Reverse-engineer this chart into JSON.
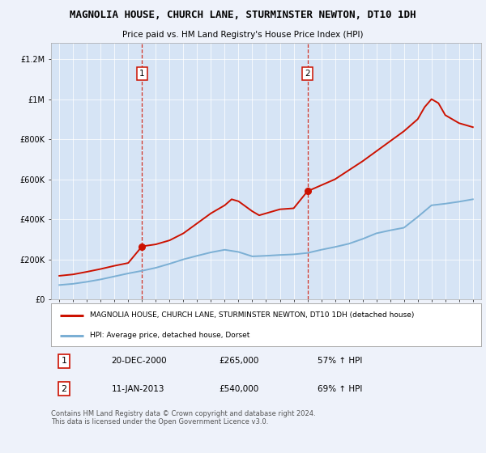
{
  "title": "MAGNOLIA HOUSE, CHURCH LANE, STURMINSTER NEWTON, DT10 1DH",
  "subtitle": "Price paid vs. HM Land Registry's House Price Index (HPI)",
  "background_color": "#eef2fa",
  "plot_bg_color": "#d6e4f5",
  "ylabel_ticks": [
    "£0",
    "£200K",
    "£400K",
    "£600K",
    "£800K",
    "£1M",
    "£1.2M"
  ],
  "ytick_values": [
    0,
    200000,
    400000,
    600000,
    800000,
    1000000,
    1200000
  ],
  "ylim": [
    0,
    1280000
  ],
  "hpi_color": "#7bafd4",
  "price_color": "#cc1100",
  "vline_color": "#cc1100",
  "purchase1_year": 2001.0,
  "purchase1_price": 265000,
  "purchase2_year": 2013.0,
  "purchase2_price": 540000,
  "legend_line1": "MAGNOLIA HOUSE, CHURCH LANE, STURMINSTER NEWTON, DT10 1DH (detached house)",
  "legend_line2": "HPI: Average price, detached house, Dorset",
  "table_entry1": [
    "1",
    "20-DEC-2000",
    "£265,000",
    "57% ↑ HPI"
  ],
  "table_entry2": [
    "2",
    "11-JAN-2013",
    "£540,000",
    "69% ↑ HPI"
  ],
  "footer": "Contains HM Land Registry data © Crown copyright and database right 2024.\nThis data is licensed under the Open Government Licence v3.0.",
  "hpi_years": [
    1995,
    1996,
    1997,
    1998,
    1999,
    2000,
    2001,
    2002,
    2003,
    2004,
    2005,
    2006,
    2007,
    2008,
    2009,
    2010,
    2011,
    2012,
    2013,
    2014,
    2015,
    2016,
    2017,
    2018,
    2019,
    2020,
    2021,
    2022,
    2023,
    2024,
    2025
  ],
  "hpi_data": [
    72000,
    78000,
    88000,
    100000,
    115000,
    130000,
    143000,
    158000,
    178000,
    200000,
    218000,
    235000,
    248000,
    237000,
    215000,
    218000,
    222000,
    225000,
    232000,
    248000,
    262000,
    278000,
    302000,
    330000,
    345000,
    358000,
    412000,
    470000,
    478000,
    488000,
    500000
  ],
  "price_data_x": [
    1995.0,
    1996.0,
    1997.0,
    1998.0,
    1999.0,
    2000.0,
    2001.0,
    2002.0,
    2003.0,
    2004.0,
    2005.0,
    2006.0,
    2007.0,
    2007.5,
    2008.0,
    2009.0,
    2009.5,
    2010.0,
    2011.0,
    2012.0,
    2013.0,
    2013.5,
    2014.0,
    2015.0,
    2016.0,
    2017.0,
    2018.0,
    2019.0,
    2020.0,
    2021.0,
    2021.5,
    2022.0,
    2022.5,
    2023.0,
    2023.5,
    2024.0,
    2025.0
  ],
  "price_data_y": [
    118000,
    125000,
    138000,
    152000,
    168000,
    182000,
    265000,
    275000,
    295000,
    330000,
    380000,
    430000,
    470000,
    500000,
    490000,
    440000,
    420000,
    430000,
    450000,
    455000,
    540000,
    555000,
    570000,
    600000,
    645000,
    690000,
    740000,
    790000,
    840000,
    900000,
    960000,
    1000000,
    980000,
    920000,
    900000,
    880000,
    860000
  ]
}
